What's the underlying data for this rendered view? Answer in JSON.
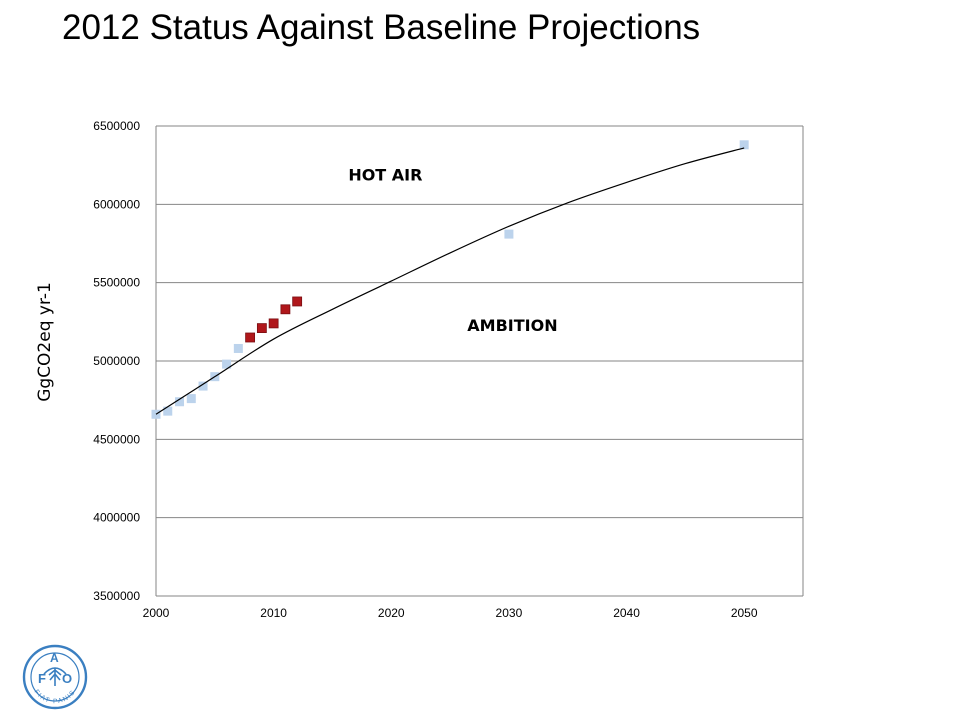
{
  "title": "2012 Status Against Baseline Projections",
  "chart_data": {
    "type": "scatter",
    "title": "",
    "ylabel": "GgCO2eq yr-1",
    "xlabel": "",
    "xlim": [
      2000,
      2055
    ],
    "ylim": [
      3500000,
      6500000
    ],
    "x_ticks": [
      2000,
      2010,
      2020,
      2030,
      2040,
      2050
    ],
    "y_ticks": [
      3500000,
      4000000,
      4500000,
      5000000,
      5500000,
      6000000,
      6500000
    ],
    "grid": "horizontal",
    "series": [
      {
        "color": "#bcd3ec",
        "marker": "square",
        "x": [
          2000,
          2001,
          2002,
          2003,
          2004,
          2005,
          2006,
          2007,
          2030,
          2050
        ],
        "y": [
          4660000,
          4680000,
          4740000,
          4760000,
          4840000,
          4900000,
          4980000,
          5080000,
          5810000,
          6380000
        ]
      },
      {
        "color": "#b0171b",
        "marker": "square",
        "x": [
          2008,
          2009,
          2010,
          2011,
          2012
        ],
        "y": [
          5150000,
          5210000,
          5240000,
          5330000,
          5380000
        ]
      },
      {
        "color": "#000000",
        "marker": "none",
        "style": "line",
        "x": [
          2000,
          2005,
          2010,
          2015,
          2020,
          2025,
          2030,
          2035,
          2040,
          2045,
          2050
        ],
        "y": [
          4660000,
          4900000,
          5140000,
          5330000,
          5510000,
          5690000,
          5860000,
          6010000,
          6140000,
          6260000,
          6360000
        ]
      }
    ],
    "annotations": [
      {
        "text": "HOT AIR",
        "x": 2019.5,
        "y": 6190000
      },
      {
        "text": "AMBITION",
        "x": 2030.3,
        "y": 5230000
      }
    ]
  },
  "logo": {
    "letters": [
      "F",
      "A",
      "O"
    ],
    "motto": "FIAT PANIS",
    "color": "#3a7fc1"
  }
}
